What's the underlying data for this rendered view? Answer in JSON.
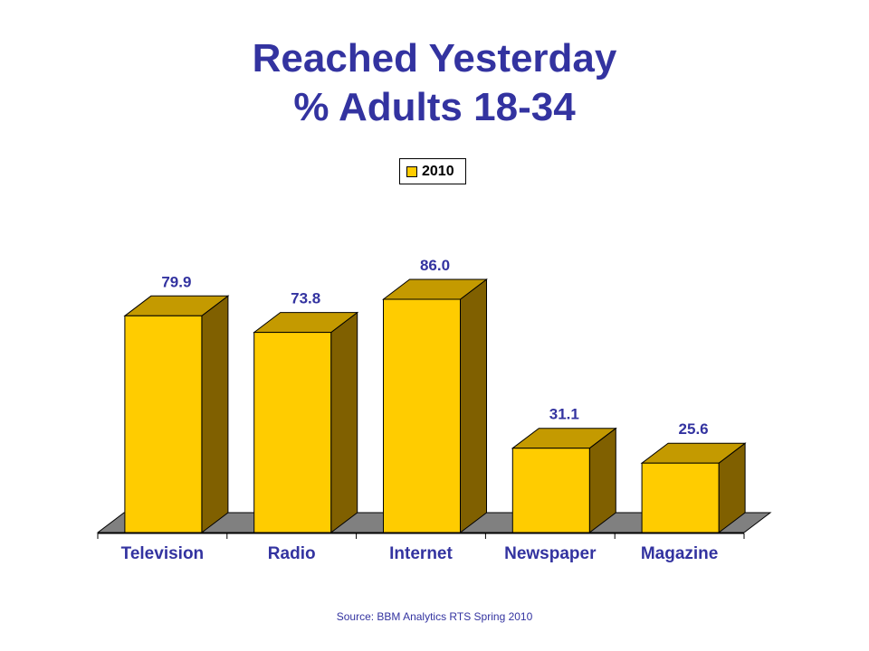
{
  "title_line1": "Reached Yesterday",
  "title_line2": "% Adults 18-34",
  "source": "Source: BBM Analytics RTS Spring 2010",
  "colors": {
    "bar_front": "#ffcc00",
    "bar_top": "#c49a00",
    "bar_side": "#806000",
    "floor": "#808080",
    "label": "#3333a0",
    "title": "#3333a0"
  },
  "chart_data": {
    "type": "bar",
    "categories": [
      "Television",
      "Radio",
      "Internet",
      "Newspaper",
      "Magazine"
    ],
    "series": [
      {
        "name": "2010",
        "values": [
          79.9,
          73.8,
          86.0,
          31.1,
          25.6
        ]
      }
    ],
    "data_labels": [
      "79.9",
      "73.8",
      "86.0",
      "31.1",
      "25.6"
    ],
    "ylim": [
      0,
      100
    ],
    "grid": false,
    "legend": "top-center"
  }
}
